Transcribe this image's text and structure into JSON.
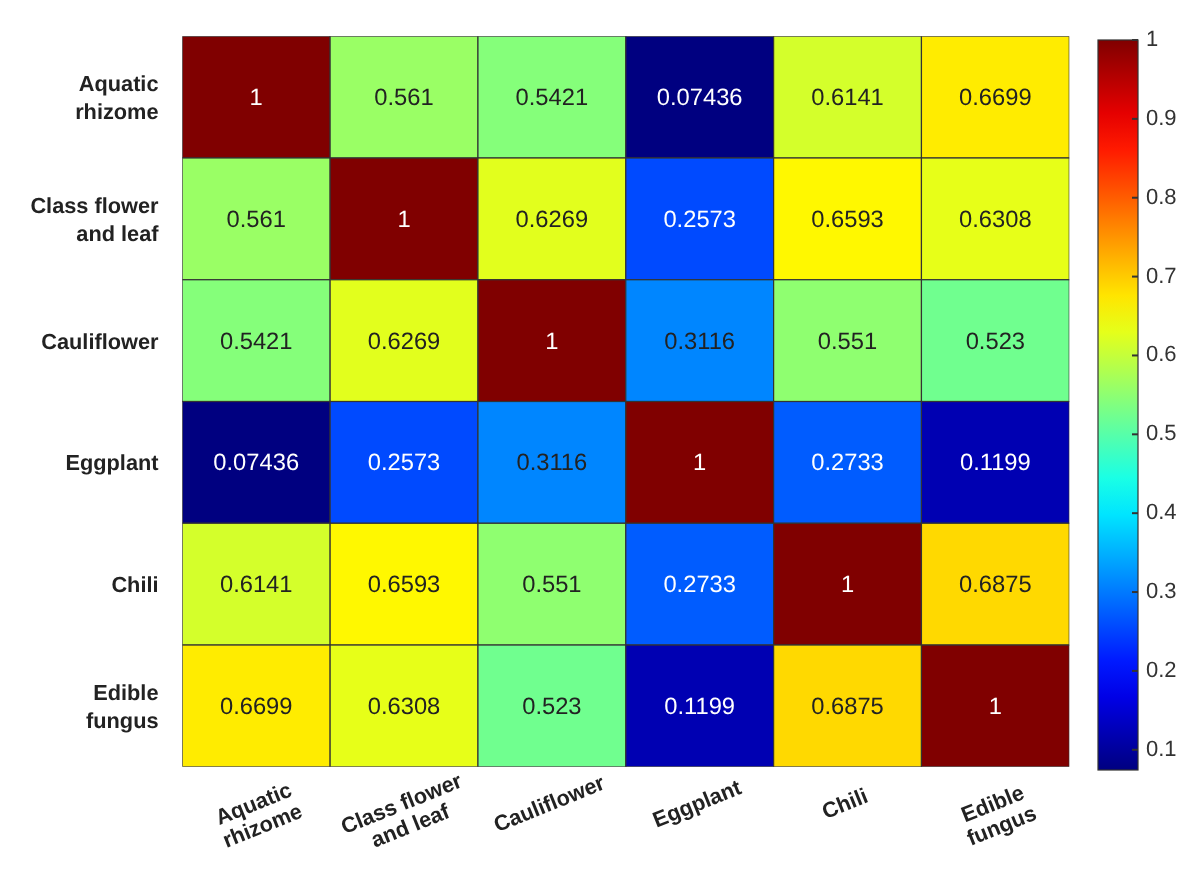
{
  "chart_data": {
    "type": "heatmap",
    "categories": [
      "Aquatic rhizome",
      "Class flower and leaf",
      "Cauliflower",
      "Eggplant",
      "Chili",
      "Edible fungus"
    ],
    "y_categories": [
      "Aquatic rhizome",
      "Class flower and leaf",
      "Cauliflower",
      "Eggplant",
      "Chili",
      "Edible fungus"
    ],
    "cells": [
      [
        1,
        0.561,
        0.5421,
        0.07436,
        0.6141,
        0.6699
      ],
      [
        0.561,
        1,
        0.6269,
        0.2573,
        0.6593,
        0.6308
      ],
      [
        0.5421,
        0.6269,
        1,
        0.3116,
        0.551,
        0.523
      ],
      [
        0.07436,
        0.2573,
        0.3116,
        1,
        0.2733,
        0.1199
      ],
      [
        0.6141,
        0.6593,
        0.551,
        0.2733,
        1,
        0.6875
      ],
      [
        0.6699,
        0.6308,
        0.523,
        0.1199,
        0.6875,
        1
      ]
    ],
    "clim": [
      0.07436,
      1
    ],
    "cticks": [
      0.1,
      0.2,
      0.3,
      0.4,
      0.5,
      0.6,
      0.7,
      0.8,
      0.9,
      1
    ],
    "data_labels": true
  }
}
